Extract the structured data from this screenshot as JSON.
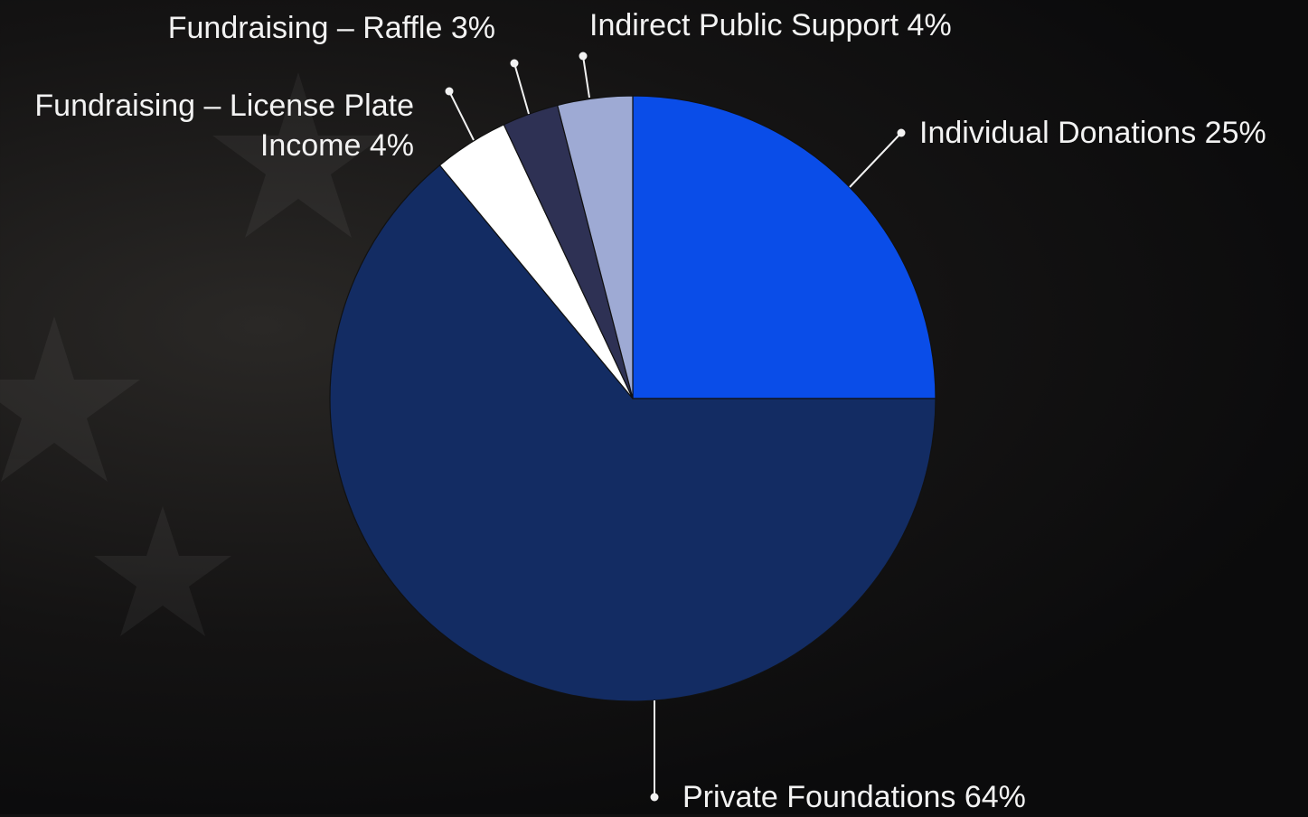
{
  "chart_data": {
    "type": "pie",
    "categories": [
      "Individual Donations",
      "Private Foundations",
      "Fundraising – License Plate Income",
      "Fundraising – Raffle",
      "Indirect Public Support"
    ],
    "values": [
      25,
      64,
      4,
      3,
      4
    ],
    "value_labels": [
      "25%",
      "64%",
      "4%",
      "3%",
      "4%"
    ],
    "colors": [
      "#0a4de8",
      "#132c63",
      "#ffffff",
      "#2e3154",
      "#9eaad4"
    ]
  }
}
